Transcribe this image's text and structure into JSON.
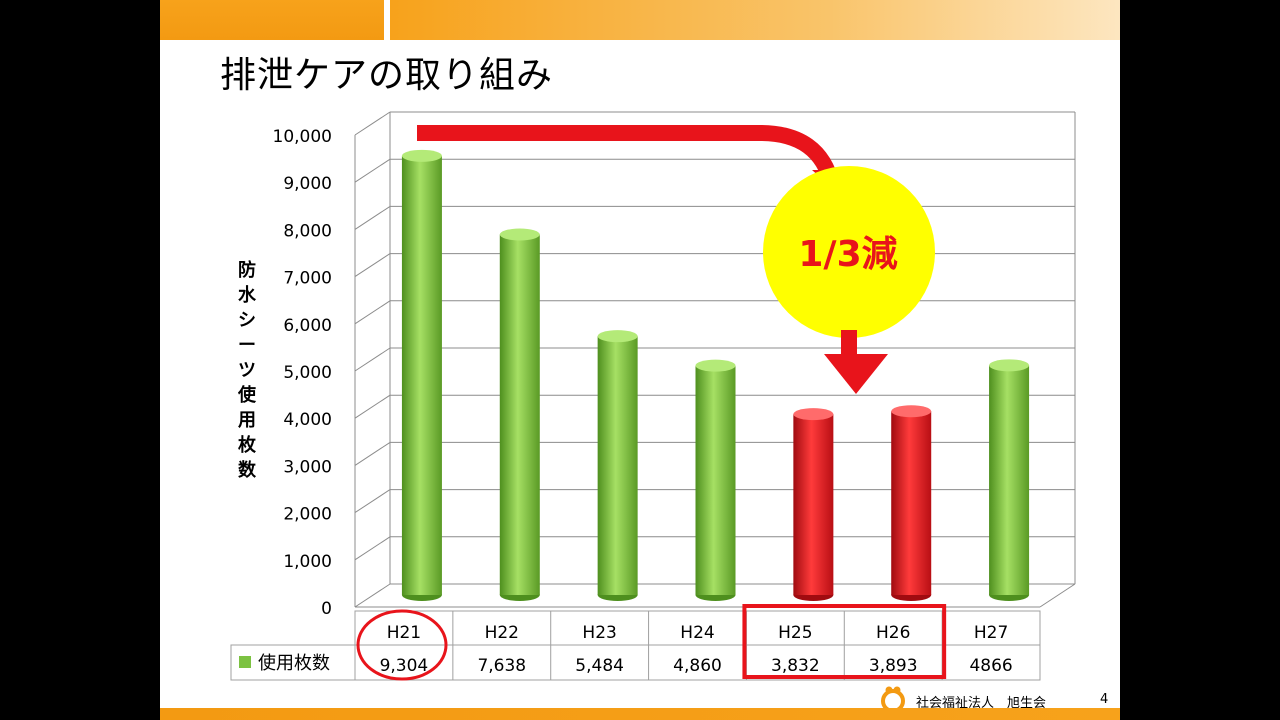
{
  "slide": {
    "title": "排泄ケアの取り組み",
    "footer_org": "社会福祉法人　旭生会",
    "page_number": "4"
  },
  "chart_data": {
    "type": "bar",
    "categories": [
      "H21",
      "H22",
      "H23",
      "H24",
      "H25",
      "H26",
      "H27"
    ],
    "series": [
      {
        "name": "使用枚数",
        "values": [
          9304,
          7638,
          5484,
          4860,
          3832,
          3893,
          4866
        ],
        "value_labels": [
          "9,304",
          "7,638",
          "5,484",
          "4,860",
          "3,832",
          "3,893",
          "4866"
        ]
      }
    ],
    "highlighted_categories": [
      "H25",
      "H26"
    ],
    "colors": {
      "normal": "#7cc242",
      "highlight": "#e8141b",
      "arrow": "#e8141b",
      "callout": "#ffff00"
    },
    "ylabel": "防水シーツ使用枚数",
    "ylim": [
      0,
      10000
    ],
    "y_ticks": [
      "0",
      "1,000",
      "2,000",
      "3,000",
      "4,000",
      "5,000",
      "6,000",
      "7,000",
      "8,000",
      "9,000",
      "10,000"
    ],
    "grid": true,
    "data_table": true,
    "annotation": "1/3減"
  }
}
